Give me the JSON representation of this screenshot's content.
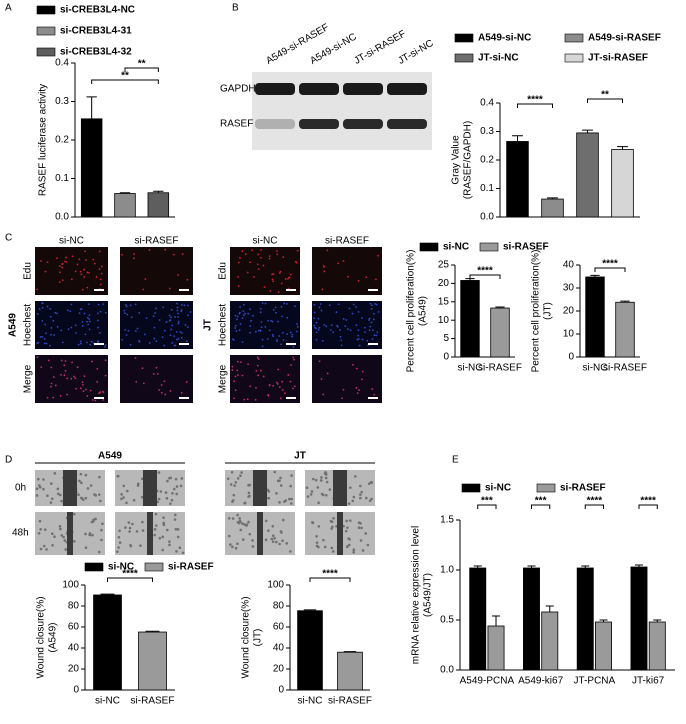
{
  "figure": {
    "panel_labels": [
      "A",
      "B",
      "C",
      "D",
      "E"
    ],
    "blot": {
      "lanes": [
        "A549-si-RASEF",
        "A549-si-NC",
        "JT-si-RASEF",
        "JT-si-NC"
      ],
      "rows": [
        "GAPDH",
        "RASEF"
      ]
    },
    "edu": {
      "groups": [
        "A549",
        "JT"
      ],
      "columns": [
        "si-NC",
        "si-RASEF"
      ],
      "rows": [
        "Edu",
        "Hoechest",
        "Merge"
      ]
    },
    "wound": {
      "groups": [
        "A549",
        "JT"
      ],
      "rows": [
        "0h",
        "48h"
      ]
    }
  },
  "chart_data": [
    {
      "type": "bar",
      "ylabel": [
        "RASEF luciferase activity"
      ],
      "ylim": [
        0,
        0.4
      ],
      "yticks": [
        {
          "value": 0,
          "label": "0.0"
        },
        0.1,
        0.2,
        0.3,
        0.4
      ],
      "series": [
        {
          "name": "si-CREB3L4-NC",
          "color": "#000000",
          "values": [
            0.255
          ],
          "errors": [
            0.057
          ]
        },
        {
          "name": "si-CREB3L4-31",
          "color": "#8c8c8c",
          "values": [
            0.061
          ],
          "errors": [
            0.002
          ]
        },
        {
          "name": "si-CREB3L4-32",
          "color": "#5e5e5e",
          "values": [
            0.063
          ],
          "errors": [
            0.004
          ]
        }
      ],
      "annotations": [
        "**",
        "**"
      ]
    },
    {
      "type": "bar",
      "ylabel": [
        "Gray Value",
        "(RASEF/GAPDH)"
      ],
      "ylim": [
        0,
        0.4
      ],
      "yticks": [
        {
          "value": 0,
          "label": "0.0"
        },
        0.1,
        0.2,
        0.3,
        0.4
      ],
      "series": [
        {
          "name": "A549-si-NC",
          "color": "#000000",
          "values": [
            0.265
          ],
          "errors": [
            0.02
          ]
        },
        {
          "name": "A549-si-RASEF",
          "color": "#8c8c8c",
          "values": [
            0.063
          ],
          "errors": [
            0.004
          ]
        },
        {
          "name": "JT-si-NC",
          "color": "#6e6e6e",
          "values": [
            0.295
          ],
          "errors": [
            0.01
          ]
        },
        {
          "name": "JT-si-RASEF",
          "color": "#d6d6d6",
          "values": [
            0.237
          ],
          "errors": [
            0.01
          ]
        }
      ],
      "annotations": [
        "****",
        "**"
      ]
    },
    {
      "type": "bar",
      "ylabel": [
        "Percent cell proliferation(%)",
        "(A549)"
      ],
      "ylim": [
        0,
        25
      ],
      "yticks": [
        0,
        5,
        10,
        15,
        20,
        25
      ],
      "categories": [
        "si-NC",
        "si-RASEF"
      ],
      "values": [
        20.8,
        13.3
      ],
      "errors": [
        0.5,
        0.3
      ],
      "colors": [
        "#000000",
        "#9a9a9a"
      ],
      "legend": [
        "si-NC",
        "si-RASEF"
      ],
      "annotations": [
        "****"
      ]
    },
    {
      "type": "bar",
      "ylabel": [
        "Percent cell proliferation(%)",
        "(JT)"
      ],
      "ylim": [
        0,
        40
      ],
      "yticks": [
        0,
        10,
        20,
        30,
        40
      ],
      "categories": [
        "si-NC",
        "si-RASEF"
      ],
      "values": [
        34.8,
        23.8
      ],
      "errors": [
        0.7,
        0.5
      ],
      "colors": [
        "#000000",
        "#9a9a9a"
      ],
      "annotations": [
        "****"
      ]
    },
    {
      "type": "bar",
      "ylabel": [
        "Wound closure(%)",
        "(A549)"
      ],
      "ylim": [
        0,
        100
      ],
      "yticks": [
        0,
        20,
        40,
        60,
        80,
        100
      ],
      "categories": [
        "si-NC",
        "si-RASEF"
      ],
      "values": [
        90.5,
        55.2
      ],
      "errors": [
        0.8,
        0.8
      ],
      "colors": [
        "#000000",
        "#9a9a9a"
      ],
      "legend": [
        "si-NC",
        "si-RASEF"
      ],
      "annotations": [
        "****"
      ]
    },
    {
      "type": "bar",
      "ylabel": [
        "Wound closure(%)",
        "(JT)"
      ],
      "ylim": [
        0,
        100
      ],
      "yticks": [
        0,
        20,
        40,
        60,
        80,
        100
      ],
      "categories": [
        "si-NC",
        "si-RASEF"
      ],
      "values": [
        75.5,
        36
      ],
      "errors": [
        0.8,
        0.6
      ],
      "colors": [
        "#000000",
        "#9a9a9a"
      ],
      "annotations": [
        "****"
      ]
    },
    {
      "type": "bar",
      "ylabel": [
        "mRNA relative expression  level",
        "(A549/JT)"
      ],
      "ylim": [
        0,
        1.5
      ],
      "yticks": [
        {
          "value": 0,
          "label": "0.0"
        },
        0.5,
        {
          "value": 1,
          "label": "1.0"
        },
        1.5
      ],
      "categories": [
        "A549-PCNA",
        "A549-ki67",
        "JT-PCNA",
        "JT-ki67"
      ],
      "series": [
        {
          "name": "si-NC",
          "color": "#000000",
          "values": [
            1.02,
            1.02,
            1.02,
            1.03
          ],
          "errors": [
            0.02,
            0.02,
            0.02,
            0.02
          ]
        },
        {
          "name": "si-RASEF",
          "color": "#9a9a9a",
          "values": [
            0.44,
            0.58,
            0.48,
            0.48
          ],
          "errors": [
            0.1,
            0.06,
            0.02,
            0.02
          ]
        }
      ],
      "annotations": [
        "***",
        "***",
        "****",
        "****"
      ]
    }
  ]
}
